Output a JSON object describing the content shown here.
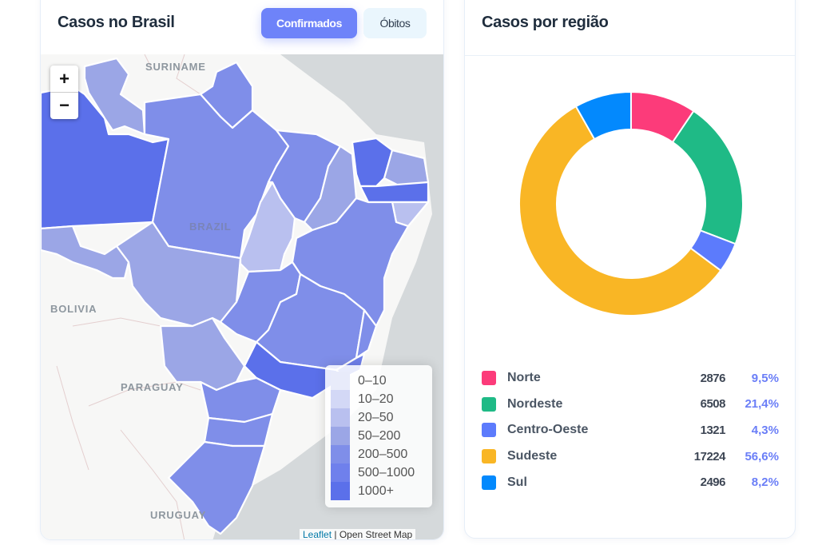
{
  "map_card": {
    "title": "Casos no Brasil",
    "tabs": [
      {
        "label": "Confirmados",
        "active": true
      },
      {
        "label": "Óbitos",
        "active": false
      }
    ],
    "zoom_in_label": "+",
    "zoom_out_label": "−",
    "country_labels": {
      "suriname": "SURINAME",
      "brazil": "BRAZIL",
      "bolivia": "BOLIVIA",
      "paraguay": "PARAGUAY",
      "uruguay": "URUGUAY"
    },
    "legend": [
      {
        "label": "0–10",
        "color": "#e8ebfa"
      },
      {
        "label": "10–20",
        "color": "#d3d8f6"
      },
      {
        "label": "20–50",
        "color": "#b9c0ef"
      },
      {
        "label": "50–200",
        "color": "#9ba6e6"
      },
      {
        "label": "200–500",
        "color": "#7f8ee9"
      },
      {
        "label": "500–1000",
        "color": "#6f80ec"
      },
      {
        "label": "1000+",
        "color": "#5b70ea"
      }
    ],
    "attribution": {
      "leaflet": "Leaflet",
      "separator": " | ",
      "osm": "Open Street Map"
    }
  },
  "region_card": {
    "title": "Casos por região",
    "regions": [
      {
        "name": "Norte",
        "count": "2876",
        "pct": "9,5%",
        "color": "#fc3b7a"
      },
      {
        "name": "Nordeste",
        "count": "6508",
        "pct": "21,4%",
        "color": "#1fba86"
      },
      {
        "name": "Centro-Oeste",
        "count": "1321",
        "pct": "4,3%",
        "color": "#5c7bfc"
      },
      {
        "name": "Sudeste",
        "count": "17224",
        "pct": "56,6%",
        "color": "#f9b625"
      },
      {
        "name": "Sul",
        "count": "2496",
        "pct": "8,2%",
        "color": "#0389fd"
      }
    ]
  },
  "chart_data": {
    "type": "pie",
    "title": "Casos por região",
    "variant": "donut",
    "categories": [
      "Norte",
      "Nordeste",
      "Centro-Oeste",
      "Sudeste",
      "Sul"
    ],
    "values": [
      2876,
      6508,
      1321,
      17224,
      2496
    ],
    "percentages": [
      9.5,
      21.4,
      4.3,
      56.6,
      8.2
    ],
    "colors": [
      "#fc3b7a",
      "#1fba86",
      "#5c7bfc",
      "#f9b625",
      "#0389fd"
    ],
    "legend_position": "bottom"
  }
}
